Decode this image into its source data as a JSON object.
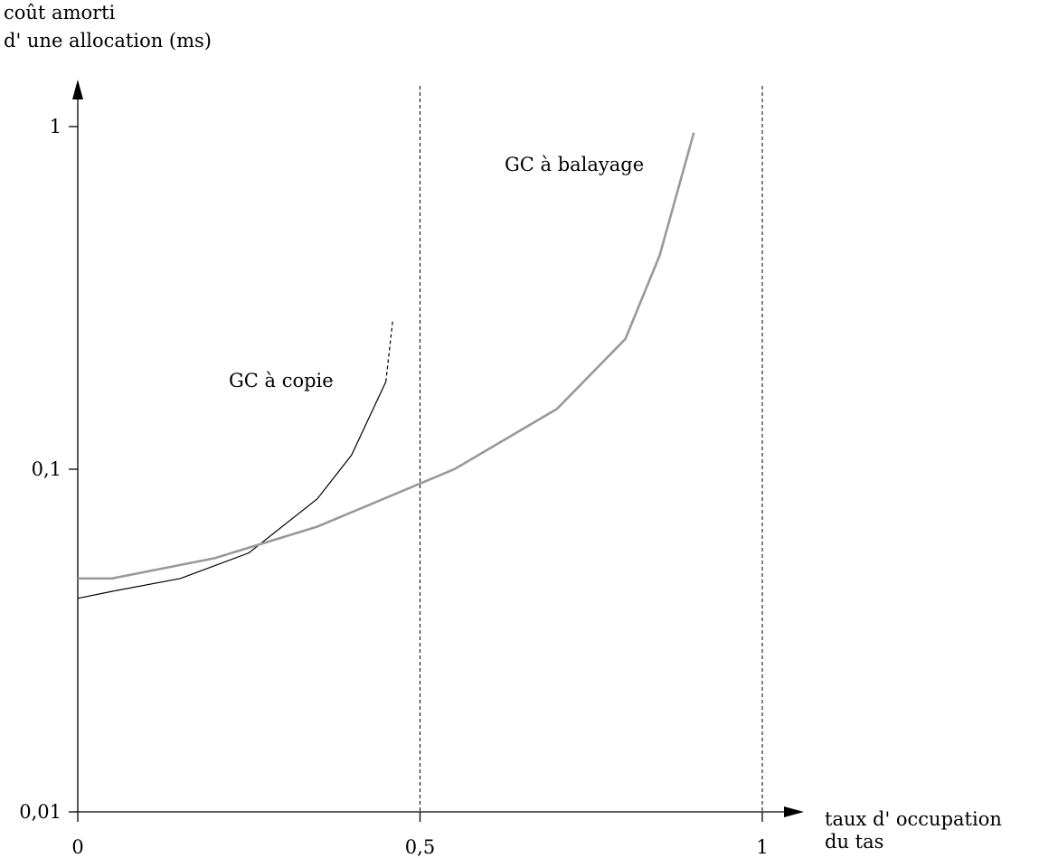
{
  "chart_data": {
    "type": "line",
    "y_axis": {
      "label_line1": "coût amorti",
      "label_line2": "d'  une allocation (ms)",
      "scale": "log",
      "range": [
        0.01,
        1
      ],
      "ticks": [
        {
          "value": 1,
          "label": "1"
        },
        {
          "value": 0.1,
          "label": "0,1"
        },
        {
          "value": 0.01,
          "label": "0,01"
        }
      ]
    },
    "x_axis": {
      "label_line1": "taux d'  occupation",
      "label_line2": "du tas",
      "range": [
        0,
        1
      ],
      "ticks": [
        {
          "value": 0,
          "label": "0"
        },
        {
          "value": 0.5,
          "label": "0,5"
        },
        {
          "value": 1,
          "label": "1"
        }
      ]
    },
    "reference_lines_x": [
      0.5,
      1
    ],
    "series": [
      {
        "name": "GC à copie",
        "color": "#000000",
        "x": [
          0,
          0.05,
          0.15,
          0.25,
          0.35,
          0.4,
          0.45
        ],
        "y": [
          0.042,
          0.044,
          0.048,
          0.057,
          0.082,
          0.11,
          0.18
        ],
        "extension": {
          "x": [
            0.45,
            0.46
          ],
          "y": [
            0.18,
            0.27
          ],
          "dashed": true
        }
      },
      {
        "name": "GC à balayage",
        "color": "#999999",
        "x": [
          0,
          0.05,
          0.2,
          0.35,
          0.55,
          0.7,
          0.8,
          0.85,
          0.9
        ],
        "y": [
          0.048,
          0.048,
          0.055,
          0.068,
          0.1,
          0.15,
          0.24,
          0.42,
          0.96
        ]
      }
    ]
  }
}
